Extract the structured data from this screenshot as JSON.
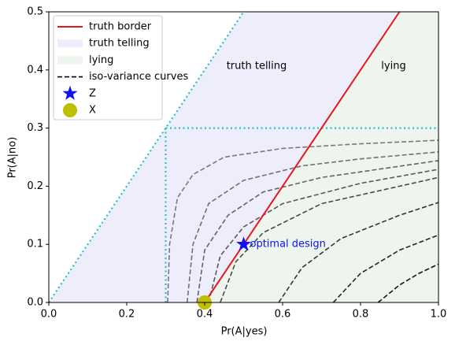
{
  "chart_data": {
    "type": "line",
    "xlabel": "Pr(A|yes)",
    "ylabel": "Pr(A|no)",
    "xlim": [
      0,
      1
    ],
    "ylim": [
      0,
      0.5
    ],
    "xticks": [
      {
        "value": 0,
        "label": "0.0"
      },
      {
        "value": 0.2,
        "label": "0.2"
      },
      {
        "value": 0.4,
        "label": "0.4"
      },
      {
        "value": 0.6,
        "label": "0.6"
      },
      {
        "value": 0.8,
        "label": "0.8"
      },
      {
        "value": 1,
        "label": "1.0"
      }
    ],
    "yticks": [
      {
        "value": 0,
        "label": "0.0"
      },
      {
        "value": 0.1,
        "label": "0.1"
      },
      {
        "value": 0.2,
        "label": "0.2"
      },
      {
        "value": 0.3,
        "label": "0.3"
      },
      {
        "value": 0.4,
        "label": "0.4"
      },
      {
        "value": 0.5,
        "label": "0.5"
      }
    ],
    "legend": "upper left",
    "regions": [
      {
        "name": "truth telling",
        "color": "#ededfb",
        "x": [
          0,
          0.4,
          0.9,
          0.5
        ],
        "y": [
          0,
          0,
          0.5,
          0.5
        ]
      },
      {
        "name": "lying",
        "color": "#eef5ee",
        "x": [
          0.4,
          1,
          1,
          0.9
        ],
        "y": [
          0,
          0,
          0.5,
          0.5
        ]
      }
    ],
    "series": [
      {
        "name": "truth border",
        "color": "#e8161b",
        "x": [
          0.4,
          0.9
        ],
        "y": [
          0,
          0.5
        ]
      }
    ],
    "guides": {
      "color": "#1fc6c0",
      "lines": [
        {
          "x": [
            0,
            0.5
          ],
          "y": [
            0,
            0.5
          ]
        },
        {
          "x": [
            0.3,
            0.3
          ],
          "y": [
            0,
            0.3
          ]
        },
        {
          "x": [
            0.3,
            1
          ],
          "y": [
            0.3,
            0.3
          ]
        }
      ]
    },
    "curves": {
      "name": "iso-variance curves",
      "color": "#000000",
      "lines": [
        {
          "color": "#787882",
          "x": [
            0.305,
            0.31,
            0.33,
            0.37,
            0.45,
            0.6,
            0.8,
            1
          ],
          "y": [
            0,
            0.1,
            0.18,
            0.22,
            0.25,
            0.265,
            0.273,
            0.279
          ]
        },
        {
          "color": "#707074",
          "x": [
            0.355,
            0.37,
            0.41,
            0.5,
            0.65,
            0.8,
            1
          ],
          "y": [
            0,
            0.1,
            0.17,
            0.21,
            0.235,
            0.247,
            0.259
          ]
        },
        {
          "color": "#636366",
          "x": [
            0.38,
            0.4,
            0.46,
            0.55,
            0.7,
            1
          ],
          "y": [
            0,
            0.09,
            0.15,
            0.19,
            0.215,
            0.244
          ]
        },
        {
          "color": "#58585a",
          "x": [
            0.41,
            0.44,
            0.5,
            0.6,
            0.8,
            1
          ],
          "y": [
            0,
            0.08,
            0.13,
            0.17,
            0.205,
            0.229
          ]
        },
        {
          "color": "#4a4a4a",
          "x": [
            0.44,
            0.48,
            0.55,
            0.7,
            1
          ],
          "y": [
            0,
            0.07,
            0.12,
            0.17,
            0.215
          ]
        },
        {
          "color": "#353535",
          "x": [
            0.59,
            0.65,
            0.75,
            0.9,
            1
          ],
          "y": [
            0,
            0.06,
            0.11,
            0.15,
            0.172
          ]
        },
        {
          "color": "#242424",
          "x": [
            0.73,
            0.8,
            0.9,
            1
          ],
          "y": [
            0,
            0.05,
            0.09,
            0.116
          ]
        },
        {
          "color": "#151515",
          "x": [
            0.845,
            0.9,
            0.95,
            1
          ],
          "y": [
            0,
            0.03,
            0.05,
            0.066
          ]
        }
      ]
    },
    "points": [
      {
        "name": "Z",
        "marker": "star",
        "color": "#1010f0",
        "x": 0.5,
        "y": 0.1,
        "annotation": "optimal design"
      },
      {
        "name": "X",
        "marker": "circle",
        "color": "#bfbf00",
        "x": 0.4,
        "y": 0
      }
    ]
  }
}
